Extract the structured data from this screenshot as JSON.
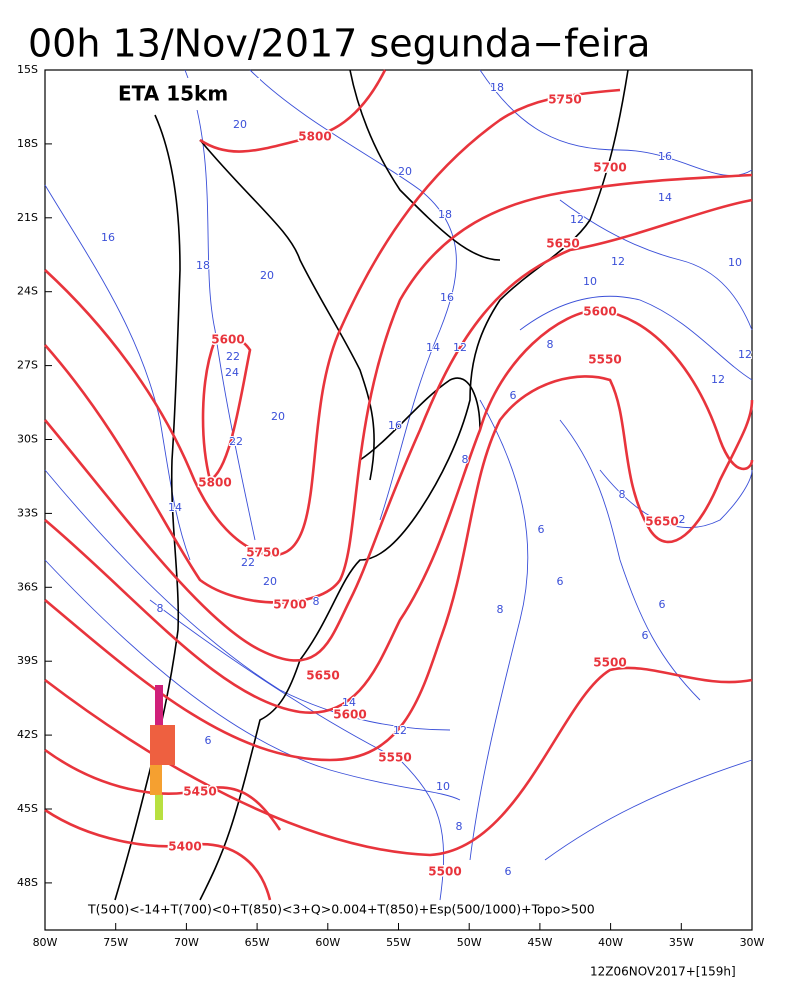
{
  "header": {
    "title": "00h 13/Nov/2017 segunda−feira",
    "model": "ETA 15km"
  },
  "map": {
    "latitude_labels": [
      "15S",
      "18S",
      "21S",
      "24S",
      "27S",
      "30S",
      "33S",
      "36S",
      "39S",
      "42S",
      "45S",
      "48S"
    ],
    "longitude_labels": [
      "80W",
      "75W",
      "70W",
      "65W",
      "60W",
      "55W",
      "50W",
      "45W",
      "40W",
      "35W",
      "30W"
    ],
    "geopotential_labels": [
      "5750",
      "5800",
      "5700",
      "5650",
      "5600",
      "5550",
      "5600",
      "5800",
      "5650",
      "5750",
      "5700",
      "5650",
      "5600",
      "5550",
      "5500",
      "5450",
      "5400",
      "5500"
    ],
    "thickness_labels": [
      "18",
      "20",
      "20",
      "16",
      "14",
      "12",
      "18",
      "16",
      "12",
      "10",
      "10",
      "18",
      "20",
      "16",
      "14",
      "12",
      "22",
      "24",
      "12",
      "12",
      "20",
      "22",
      "16",
      "8",
      "6",
      "8",
      "8",
      "6",
      "14",
      "22",
      "20",
      "8",
      "6",
      "6",
      "6",
      "8",
      "14",
      "12",
      "6",
      "10",
      "8",
      "6",
      "2",
      "8"
    ],
    "legend_formula": "T(500)<-14+T(700)<0+T(850)<3+Q>0.004+T(850)+Esp(500/1000)+Topo>500"
  },
  "footer": {
    "run": "12Z06NOV2017+[159h]"
  }
}
